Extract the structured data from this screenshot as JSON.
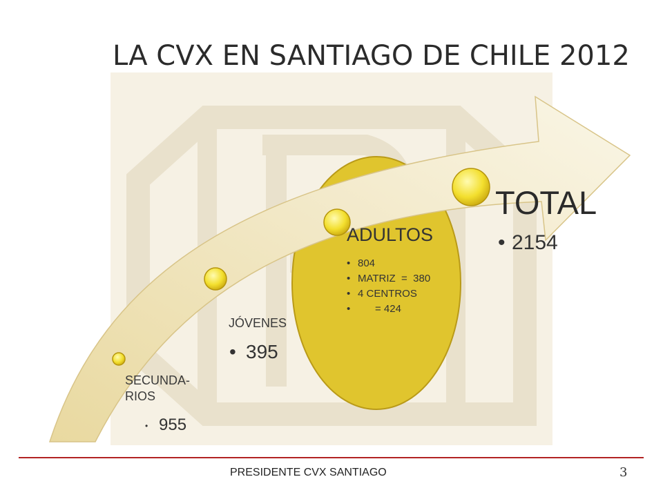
{
  "title": "LA CVX EN SANTIAGO DE CHILE 2012",
  "stages": [
    {
      "label": "SECUNDA-\nRIOS",
      "value": "955"
    },
    {
      "label": "JÓVENES",
      "value": "395"
    },
    {
      "label": "ADULTOS",
      "items": [
        "804",
        "MATRIZ  =  380",
        "4 CENTROS",
        "      = 424"
      ]
    },
    {
      "label": "TOTAL",
      "value": "2154"
    }
  ],
  "footer": "PRESIDENTE CVX SANTIAGO",
  "page_number": "3",
  "colors": {
    "arrow": "#efe3b4",
    "circle": "#e0c52e",
    "node": "#f4e23a",
    "watermark": "#d8c9a4",
    "footer_line": "#b22222"
  }
}
